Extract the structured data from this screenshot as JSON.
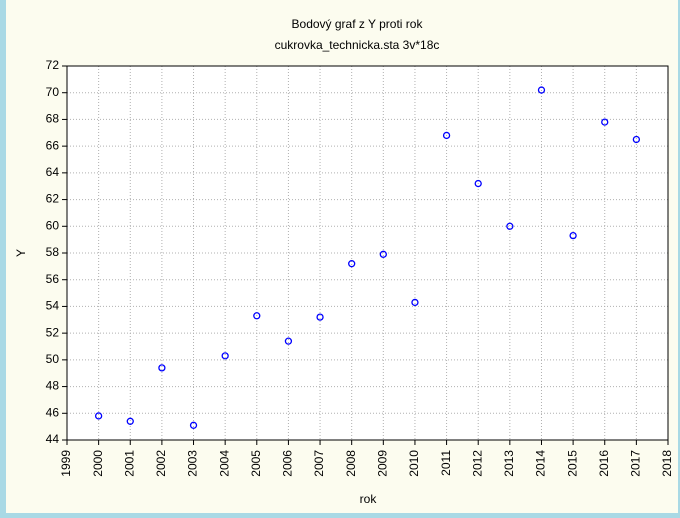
{
  "chart_data": {
    "type": "scatter",
    "title": "Bodový graf z Y proti rok",
    "subtitle": "cukrovka_technicka.sta 3v*18c",
    "x_label": "rok",
    "y_label": "Y",
    "x": [
      2000,
      2001,
      2002,
      2003,
      2004,
      2005,
      2006,
      2007,
      2008,
      2009,
      2010,
      2011,
      2012,
      2013,
      2014,
      2015,
      2016,
      2017
    ],
    "series": [
      {
        "name": "Y",
        "color": "#0000ff",
        "values": [
          45.8,
          45.4,
          49.4,
          45.1,
          50.3,
          53.3,
          51.4,
          53.2,
          57.2,
          57.9,
          54.3,
          66.8,
          63.2,
          60.0,
          70.2,
          59.3,
          67.8,
          66.5
        ]
      }
    ],
    "xlim": [
      1999,
      2018
    ],
    "xticks": [
      1999,
      2000,
      2001,
      2002,
      2003,
      2004,
      2005,
      2006,
      2007,
      2008,
      2009,
      2010,
      2011,
      2012,
      2013,
      2014,
      2015,
      2016,
      2017,
      2018
    ],
    "ylim": [
      44,
      72
    ],
    "yticks": [
      44,
      46,
      48,
      50,
      52,
      54,
      56,
      58,
      60,
      62,
      64,
      66,
      68,
      70,
      72
    ],
    "grid": true
  }
}
